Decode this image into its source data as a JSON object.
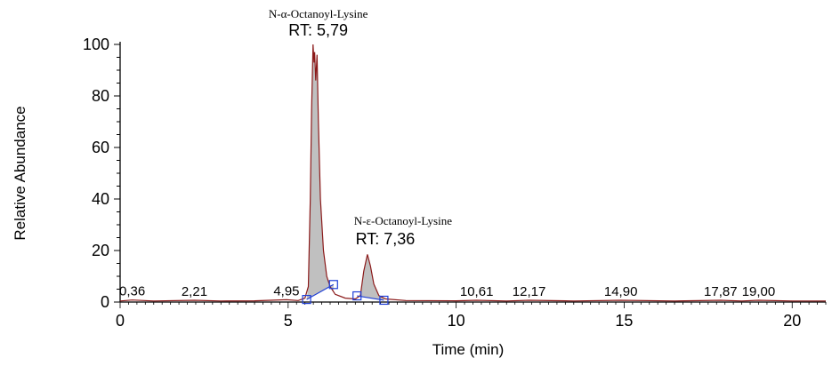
{
  "chart_data": {
    "type": "area",
    "xlabel": "Time (min)",
    "ylabel": "Relative Abundance",
    "xlim": [
      0,
      21
    ],
    "ylim": [
      0,
      100
    ],
    "x_ticks": [
      0,
      5,
      10,
      15,
      20
    ],
    "y_ticks": [
      0,
      20,
      40,
      60,
      80,
      100
    ],
    "colors": {
      "trace": "#8b1a1a",
      "fill": "#c0c0c0",
      "baseline": "#1f3fd6",
      "marker": "#1f3fd6",
      "axis": "#000000"
    },
    "trace": [
      [
        0,
        0.4
      ],
      [
        0.36,
        0.8
      ],
      [
        1.0,
        0.4
      ],
      [
        2.21,
        0.7
      ],
      [
        3.0,
        0.4
      ],
      [
        4.0,
        0.5
      ],
      [
        4.95,
        0.9
      ],
      [
        5.3,
        0.6
      ],
      [
        5.5,
        1.5
      ],
      [
        5.6,
        6
      ],
      [
        5.66,
        40
      ],
      [
        5.7,
        75
      ],
      [
        5.74,
        100
      ],
      [
        5.77,
        93
      ],
      [
        5.79,
        97
      ],
      [
        5.82,
        86
      ],
      [
        5.86,
        96
      ],
      [
        5.9,
        70
      ],
      [
        5.96,
        40
      ],
      [
        6.05,
        20
      ],
      [
        6.15,
        10
      ],
      [
        6.25,
        6
      ],
      [
        6.4,
        3
      ],
      [
        6.7,
        1.5
      ],
      [
        7.0,
        1.2
      ],
      [
        7.15,
        2.5
      ],
      [
        7.25,
        12
      ],
      [
        7.36,
        18.5
      ],
      [
        7.45,
        14
      ],
      [
        7.55,
        7
      ],
      [
        7.7,
        2.5
      ],
      [
        7.9,
        1.2
      ],
      [
        8.5,
        0.6
      ],
      [
        10.0,
        0.5
      ],
      [
        10.61,
        0.7
      ],
      [
        11.5,
        0.4
      ],
      [
        12.17,
        0.7
      ],
      [
        13.5,
        0.4
      ],
      [
        14.9,
        0.7
      ],
      [
        16.5,
        0.4
      ],
      [
        17.87,
        0.7
      ],
      [
        18.5,
        0.4
      ],
      [
        19.0,
        0.7
      ],
      [
        20.0,
        0.4
      ],
      [
        21.0,
        0.4
      ]
    ],
    "integrated_peaks": [
      {
        "start": 5.55,
        "end": 6.35,
        "baseline_start": 1.0,
        "baseline_end": 6.8
      },
      {
        "start": 7.05,
        "end": 7.85,
        "baseline_start": 2.4,
        "baseline_end": 0.7
      }
    ],
    "peak_labels": [
      {
        "x": 0.36,
        "y": 0.8,
        "text": "0,36"
      },
      {
        "x": 2.21,
        "y": 0.7,
        "text": "2,21"
      },
      {
        "x": 4.95,
        "y": 0.9,
        "text": "4,95"
      },
      {
        "x": 10.61,
        "y": 0.7,
        "text": "10,61"
      },
      {
        "x": 12.17,
        "y": 0.7,
        "text": "12,17"
      },
      {
        "x": 14.9,
        "y": 0.7,
        "text": "14,90"
      },
      {
        "x": 17.87,
        "y": 0.7,
        "text": "17,87"
      },
      {
        "x": 19.0,
        "y": 0.7,
        "text": "19,00"
      }
    ],
    "annotations": [
      {
        "x": 5.79,
        "y": 100,
        "compound": "N-α-Octanoyl-Lysine",
        "rt": "RT: 5,79"
      },
      {
        "x": 7.36,
        "y": 18.5,
        "compound": "N-ε-Octanoyl-Lysine",
        "rt": "RT: 7,36"
      }
    ]
  }
}
